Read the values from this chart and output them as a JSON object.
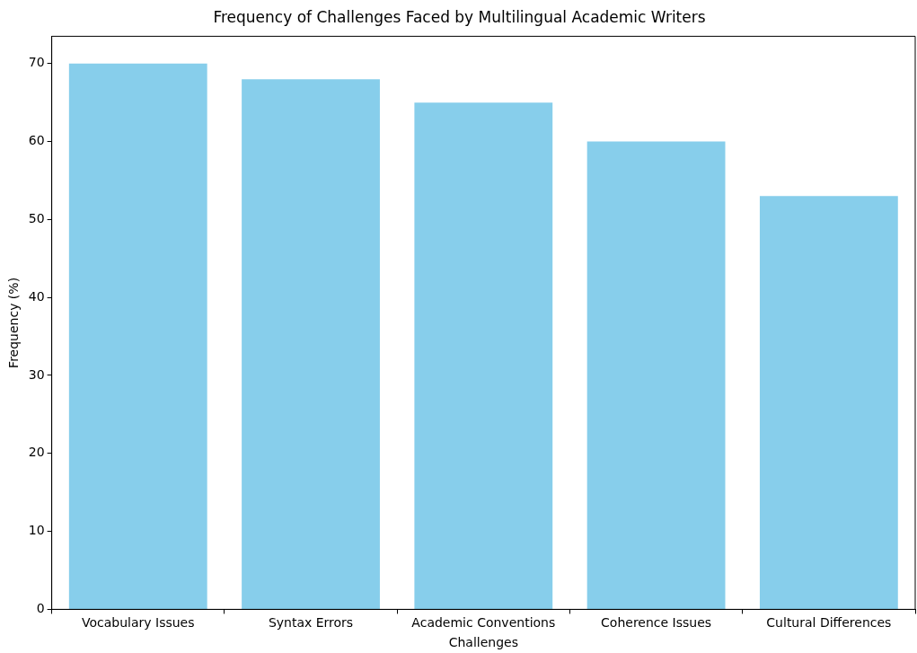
{
  "chart_data": {
    "type": "bar",
    "title": "Frequency of Challenges Faced by Multilingual Academic Writers",
    "xlabel": "Challenges",
    "ylabel": "Frequency (%)",
    "categories": [
      "Vocabulary Issues",
      "Syntax Errors",
      "Academic Conventions",
      "Coherence Issues",
      "Cultural Differences"
    ],
    "values": [
      70,
      68,
      65,
      60,
      53
    ],
    "color": "#87ceeb",
    "ylim": [
      0,
      73.5
    ],
    "yticks": [
      0,
      10,
      20,
      30,
      40,
      50,
      60,
      70
    ],
    "grid": false,
    "legend": false
  }
}
